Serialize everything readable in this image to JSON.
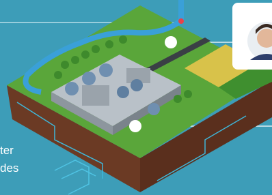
{
  "labels": {
    "line1": "ter",
    "line2": "des"
  }
}
